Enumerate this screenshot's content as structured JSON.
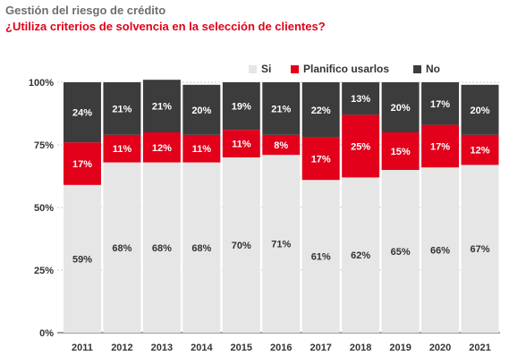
{
  "title": "Gestión del riesgo de crédito",
  "subtitle": "¿Utiliza criterios de solvencia en la selección de clientes?",
  "colors": {
    "si": "#e6e6e6",
    "planifico": "#e2001a",
    "no": "#3c3c3c",
    "grid": "#c8c8c8"
  },
  "chart_data": {
    "type": "bar",
    "stacked": true,
    "categories": [
      "2011",
      "2012",
      "2013",
      "2014",
      "2015",
      "2016",
      "2017",
      "2018",
      "2019",
      "2020",
      "2021"
    ],
    "series": [
      {
        "name": "Si",
        "values": [
          59,
          68,
          68,
          68,
          70,
          71,
          61,
          62,
          65,
          66,
          67
        ],
        "labels": [
          "59%",
          "68%",
          "68%",
          "68%",
          "70%",
          "71%",
          "61%",
          "62%",
          "65%",
          "66%",
          "67%"
        ]
      },
      {
        "name": "Planifico usarlos",
        "values": [
          17,
          11,
          12,
          11,
          11,
          8,
          17,
          25,
          15,
          17,
          12
        ],
        "labels": [
          "17%",
          "11%",
          "12%",
          "11%",
          "11%",
          "8%",
          "17%",
          "25%",
          "15%",
          "17%",
          "12%"
        ]
      },
      {
        "name": "No",
        "values": [
          24,
          21,
          21,
          20,
          19,
          21,
          22,
          13,
          20,
          17,
          20
        ],
        "labels": [
          "24%",
          "21%",
          "21%",
          "20%",
          "19%",
          "21%",
          "22%",
          "13%",
          "20%",
          "17%",
          "20%"
        ]
      }
    ],
    "ylim": [
      0,
      100
    ],
    "yticks": [
      0,
      25,
      50,
      75,
      100
    ],
    "ytick_labels": [
      "0%",
      "25%",
      "50%",
      "75%",
      "100%"
    ],
    "grid": true,
    "legend_position": "top-right"
  }
}
